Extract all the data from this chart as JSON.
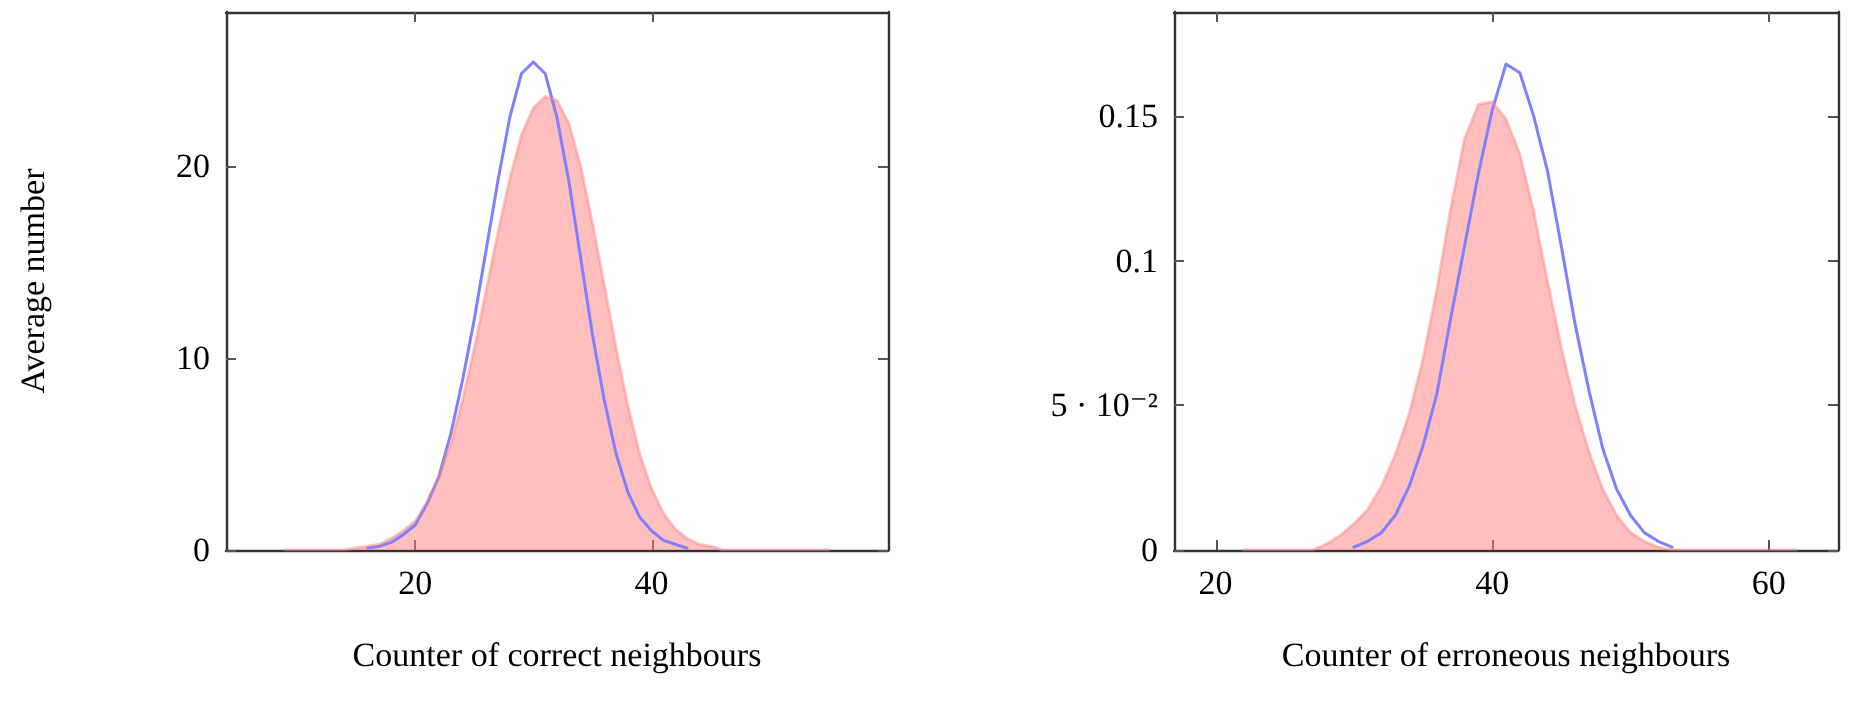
{
  "chart_data": [
    {
      "type": "line",
      "ylabel": "Average number",
      "xlabel": "Counter of correct neighbours",
      "xlim": [
        4,
        60
      ],
      "xticks": [
        20,
        40
      ],
      "ylim": [
        0,
        28
      ],
      "yticks": [
        0,
        10,
        20
      ],
      "grid": false,
      "marker": "none",
      "line_style": "solid",
      "series": [
        {
          "type": "line",
          "color": "#8080ff",
          "x": [
            16,
            17,
            18,
            19,
            20,
            21,
            22,
            23,
            24,
            25,
            26,
            27,
            28,
            29,
            30,
            31,
            32,
            33,
            34,
            35,
            36,
            37,
            38,
            39,
            40,
            41,
            42,
            43
          ],
          "values": [
            0.1,
            0.2,
            0.4,
            0.8,
            1.3,
            2.4,
            3.8,
            6,
            8.8,
            12,
            15.6,
            19.2,
            22.5,
            24.8,
            25.4,
            24.8,
            22.5,
            19.2,
            15.2,
            11.2,
            7.8,
            5,
            3,
            1.7,
            1,
            0.5,
            0.3,
            0.1
          ]
        },
        {
          "type": "area",
          "color": "#ff8080",
          "x": [
            9,
            10,
            11,
            12,
            13,
            14,
            15,
            16,
            17,
            18,
            19,
            20,
            21,
            22,
            23,
            24,
            25,
            26,
            27,
            28,
            29,
            30,
            31,
            32,
            33,
            34,
            35,
            36,
            37,
            38,
            39,
            40,
            41,
            42,
            43,
            44,
            45,
            46,
            47,
            48,
            49,
            50,
            51,
            52,
            53,
            54,
            55
          ],
          "values": [
            0,
            0,
            0,
            0,
            0,
            0,
            0.1,
            0.2,
            0.3,
            0.6,
            1,
            1.5,
            2.5,
            3.8,
            5.5,
            7.8,
            10.5,
            13.5,
            16.5,
            19.3,
            21.6,
            23,
            23.6,
            23.4,
            22.2,
            20,
            17,
            13.8,
            10.5,
            7.5,
            5,
            3.2,
            1.9,
            1.1,
            0.6,
            0.3,
            0.2,
            0,
            0,
            0,
            0,
            0,
            0,
            0,
            0,
            0,
            0
          ]
        }
      ]
    },
    {
      "type": "line",
      "xlabel": "Counter of erroneous neighbours",
      "xlim": [
        17,
        65
      ],
      "xticks": [
        20,
        40,
        60
      ],
      "ylim": [
        0,
        0.186
      ],
      "yticks": [
        0,
        {
          "value": 0.05,
          "label": "5 · 10⁻²"
        },
        0.1,
        0.15
      ],
      "grid": false,
      "marker": "none",
      "line_style": "solid",
      "series": [
        {
          "type": "line",
          "color": "#8080ff",
          "x": [
            30,
            31,
            32,
            33,
            34,
            35,
            36,
            37,
            38,
            39,
            40,
            41,
            42,
            43,
            44,
            45,
            46,
            47,
            48,
            49,
            50,
            51,
            52,
            53
          ],
          "values": [
            0.001,
            0.003,
            0.006,
            0.012,
            0.022,
            0.036,
            0.054,
            0.08,
            0.105,
            0.13,
            0.152,
            0.168,
            0.165,
            0.15,
            0.131,
            0.105,
            0.078,
            0.055,
            0.035,
            0.021,
            0.012,
            0.006,
            0.003,
            0.001
          ]
        },
        {
          "type": "area",
          "color": "#ff8080",
          "x": [
            22,
            23,
            24,
            25,
            26,
            27,
            28,
            29,
            30,
            31,
            32,
            33,
            34,
            35,
            36,
            37,
            38,
            39,
            40,
            41,
            42,
            43,
            44,
            45,
            46,
            47,
            48,
            49,
            50,
            51,
            52,
            53,
            54,
            55,
            56,
            57,
            58,
            59,
            60,
            61,
            62
          ],
          "values": [
            0,
            0,
            0,
            0,
            0,
            0,
            0.002,
            0.005,
            0.009,
            0.014,
            0.022,
            0.033,
            0.047,
            0.066,
            0.09,
            0.118,
            0.142,
            0.154,
            0.155,
            0.149,
            0.137,
            0.117,
            0.093,
            0.07,
            0.05,
            0.034,
            0.021,
            0.012,
            0.006,
            0.003,
            0.001,
            0,
            0,
            0,
            0,
            0,
            0,
            0,
            0,
            0,
            0
          ]
        }
      ]
    }
  ]
}
